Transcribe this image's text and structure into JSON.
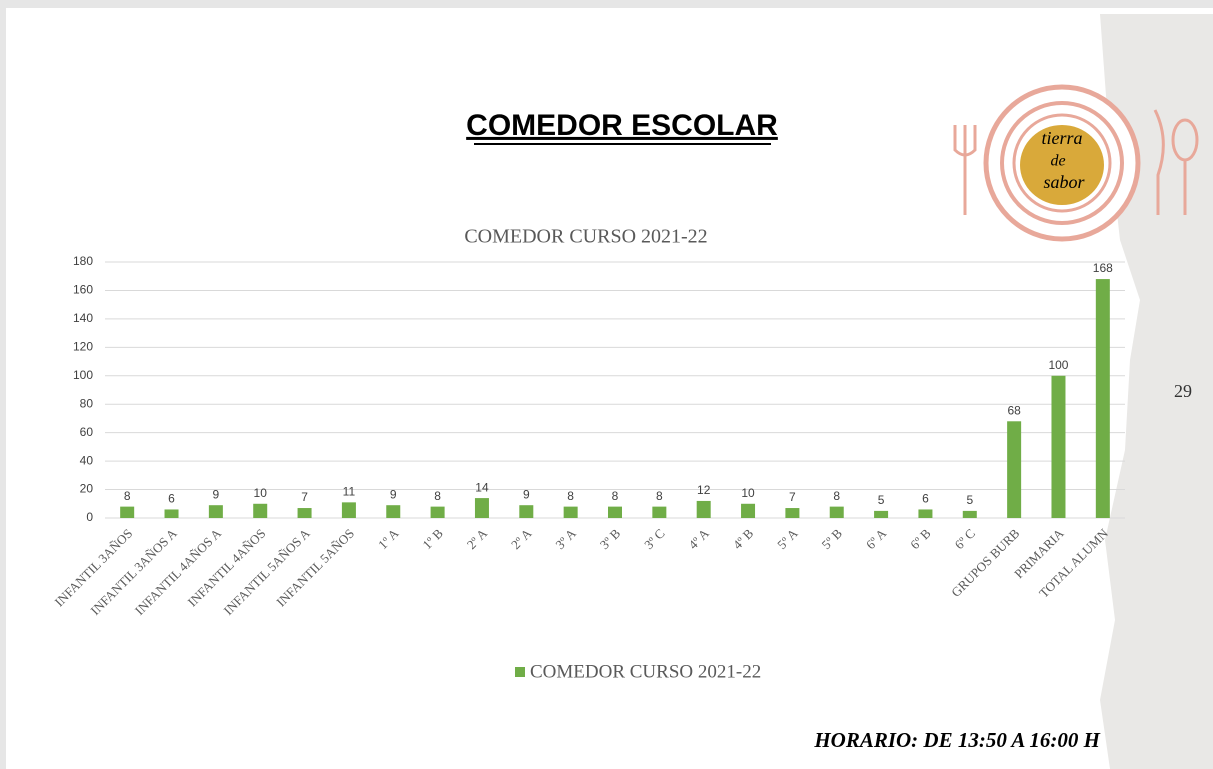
{
  "slide": {
    "title": "COMEDOR ESCOLAR",
    "page_number": "29",
    "footer": "HORARIO: DE 13:50 A 16:00 H",
    "logo": [
      "tierra",
      "de",
      "sabor"
    ]
  },
  "chart_data": {
    "type": "bar",
    "title": "COMEDOR CURSO 2021-22",
    "categories": [
      "INFANTIL 3AÑOS",
      "INFANTIL 3AÑOS A",
      "INFANTIL 4AÑOS A",
      "INFANTIL 4AÑOS",
      "INFANTIL 5AÑOS A",
      "INFANTIL 5AÑOS",
      "1º A",
      "1º B",
      "2º A",
      "2º A",
      "3º A",
      "3º B",
      "3º C",
      "4º A",
      "4º B",
      "5º A",
      "5º B",
      "6º A",
      "6º B",
      "6º C",
      "GRUPOS BURB",
      "PRIMARIA",
      "TOTAL ALUMN"
    ],
    "series": [
      {
        "name": "COMEDOR CURSO 2021-22",
        "color": "#70ad47",
        "values": [
          8,
          6,
          9,
          10,
          7,
          11,
          9,
          8,
          14,
          9,
          8,
          8,
          8,
          12,
          10,
          7,
          8,
          5,
          6,
          5,
          68,
          100,
          168
        ]
      }
    ],
    "ylim": [
      0,
      180
    ],
    "yticks": [
      0,
      20,
      40,
      60,
      80,
      100,
      120,
      140,
      160,
      180
    ],
    "grid": true,
    "legend": "bottom",
    "data_labels": true
  }
}
